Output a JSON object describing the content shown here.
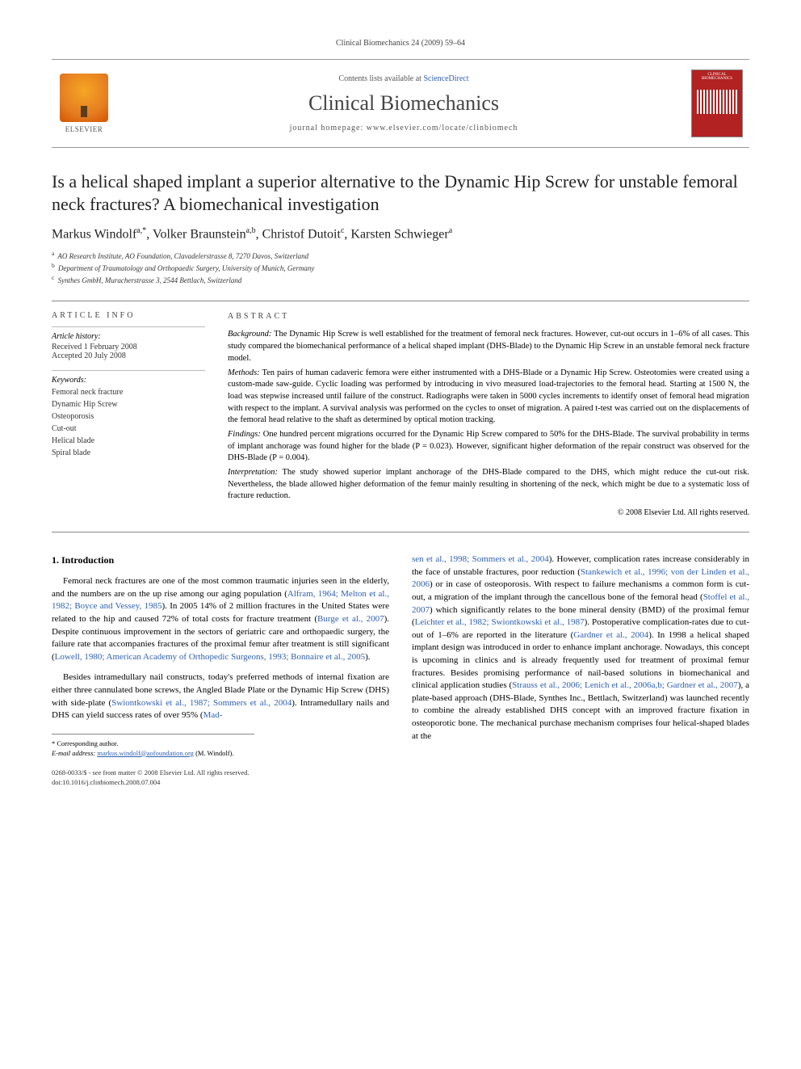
{
  "running_head": "Clinical Biomechanics 24 (2009) 59–64",
  "masthead": {
    "contents_prefix": "Contents lists available at ",
    "contents_link": "ScienceDirect",
    "journal": "Clinical Biomechanics",
    "homepage_prefix": "journal homepage: ",
    "homepage": "www.elsevier.com/locate/clinbiomech",
    "publisher_label": "ELSEVIER",
    "cover_text": "CLINICAL BIOMECHANICS"
  },
  "title": "Is a helical shaped implant a superior alternative to the Dynamic Hip Screw for unstable femoral neck fractures? A biomechanical investigation",
  "authors_html": "Markus Windolf<sup>a,*</sup>, Volker Braunstein<sup>a,b</sup>, Christof Dutoit<sup>c</sup>, Karsten Schwieger<sup>a</sup>",
  "affiliations": [
    {
      "sup": "a",
      "text": "AO Research Institute, AO Foundation, Clavadelerstrasse 8, 7270 Davos, Switzerland"
    },
    {
      "sup": "b",
      "text": "Department of Traumatology and Orthopaedic Surgery, University of Munich, Germany"
    },
    {
      "sup": "c",
      "text": "Synthes GmbH, Muracherstrasse 3, 2544 Bettlach, Switzerland"
    }
  ],
  "article_info": {
    "heading": "ARTICLE INFO",
    "history_label": "Article history:",
    "received": "Received 1 February 2008",
    "accepted": "Accepted 20 July 2008",
    "keywords_label": "Keywords:",
    "keywords": [
      "Femoral neck fracture",
      "Dynamic Hip Screw",
      "Osteoporosis",
      "Cut-out",
      "Helical blade",
      "Spiral blade"
    ]
  },
  "abstract": {
    "heading": "ABSTRACT",
    "background_label": "Background:",
    "background": " The Dynamic Hip Screw is well established for the treatment of femoral neck fractures. However, cut-out occurs in 1–6% of all cases. This study compared the biomechanical performance of a helical shaped implant (DHS-Blade) to the Dynamic Hip Screw in an unstable femoral neck fracture model.",
    "methods_label": "Methods:",
    "methods": " Ten pairs of human cadaveric femora were either instrumented with a DHS-Blade or a Dynamic Hip Screw. Osteotomies were created using a custom-made saw-guide. Cyclic loading was performed by introducing in vivo measured load-trajectories to the femoral head. Starting at 1500 N, the load was stepwise increased until failure of the construct. Radiographs were taken in 5000 cycles increments to identify onset of femoral head migration with respect to the implant. A survival analysis was performed on the cycles to onset of migration. A paired t-test was carried out on the displacements of the femoral head relative to the shaft as determined by optical motion tracking.",
    "findings_label": "Findings:",
    "findings": " One hundred percent migrations occurred for the Dynamic Hip Screw compared to 50% for the DHS-Blade. The survival probability in terms of implant anchorage was found higher for the blade (P = 0.023). However, significant higher deformation of the repair construct was observed for the DHS-Blade (P = 0.004).",
    "interpretation_label": "Interpretation:",
    "interpretation": " The study showed superior implant anchorage of the DHS-Blade compared to the DHS, which might reduce the cut-out risk. Nevertheless, the blade allowed higher deformation of the femur mainly resulting in shortening of the neck, which might be due to a systematic loss of fracture reduction.",
    "copyright": "© 2008 Elsevier Ltd. All rights reserved."
  },
  "introduction": {
    "heading": "1. Introduction",
    "p1_a": "Femoral neck fractures are one of the most common traumatic injuries seen in the elderly, and the numbers are on the up rise among our aging population (",
    "p1_ref1": "Alfram, 1964; Melton et al., 1982; Boyce and Vessey, 1985",
    "p1_b": "). In 2005 14% of 2 million fractures in the United States were related to the hip and caused 72% of total costs for fracture treatment (",
    "p1_ref2": "Burge et al., 2007",
    "p1_c": "). Despite continuous improvement in the sectors of geriatric care and orthopaedic surgery, the failure rate that accompanies fractures of the proximal femur after treatment is still significant (",
    "p1_ref3": "Lowell, 1980; American Academy of Orthopedic Surgeons, 1993; Bonnaire et al., 2005",
    "p1_d": ").",
    "p2_a": "Besides intramedullary nail constructs, today's preferred methods of internal fixation are either three cannulated bone screws, the Angled Blade Plate or the Dynamic Hip Screw (DHS) with side-plate (",
    "p2_ref1": "Swiontkowski et al., 1987; Sommers et al., 2004",
    "p2_b": "). Intramedullary nails and DHS can yield success rates of over 95% (",
    "p2_ref2": "Mad-",
    "col2_cont_ref": "sen et al., 1998; Sommers et al., 2004",
    "col2_a": "). However, complication rates increase considerably in the face of unstable fractures, poor reduction (",
    "col2_ref1": "Stankewich et al., 1996; von der Linden et al., 2006",
    "col2_b": ") or in case of osteoporosis. With respect to failure mechanisms a common form is cut-out, a migration of the implant through the cancellous bone of the femoral head (",
    "col2_ref2": "Stoffel et al., 2007",
    "col2_c": ") which significantly relates to the bone mineral density (BMD) of the proximal femur (",
    "col2_ref3": "Leichter et al., 1982; Swiontkowski et al., 1987",
    "col2_d": "). Postoperative complication-rates due to cut-out of 1–6% are reported in the literature (",
    "col2_ref4": "Gardner et al., 2004",
    "col2_e": "). In 1998 a helical shaped implant design was introduced in order to enhance implant anchorage. Nowadays, this concept is upcoming in clinics and is already frequently used for treatment of proximal femur fractures. Besides promising performance of nail-based solutions in biomechanical and clinical application studies (",
    "col2_ref5": "Strauss et al., 2006; Lenich et al., 2006a,b; Gardner et al., 2007",
    "col2_f": "), a plate-based approach (DHS-Blade, Synthes Inc., Bettlach, Switzerland) was launched recently to combine the already established DHS concept with an improved fracture fixation in osteoporotic bone. The mechanical purchase mechanism comprises four helical-shaped blades at the"
  },
  "corresponding": {
    "label": "* Corresponding author.",
    "email_label": "E-mail address:",
    "email": "markus.windolf@aofoundation.org",
    "name_suffix": " (M. Windolf)."
  },
  "footer": {
    "line1": "0268-0033/$ - see front matter © 2008 Elsevier Ltd. All rights reserved.",
    "line2": "doi:10.1016/j.clinbiomech.2008.07.004"
  },
  "colors": {
    "link": "#2e5fb2",
    "rule": "#888888",
    "cover_bg": "#b22222"
  }
}
